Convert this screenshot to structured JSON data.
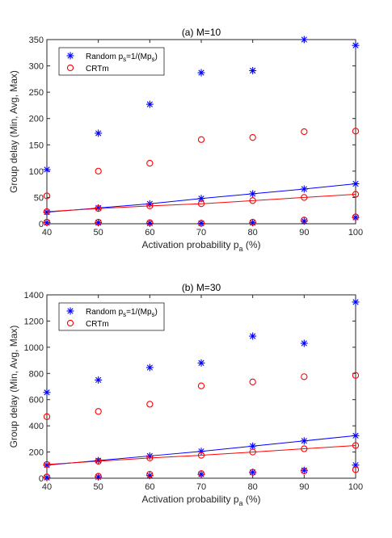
{
  "chart_data": [
    {
      "type": "scatter",
      "title": "(a) M=10",
      "xlabel": "Activation probability p_a (%)",
      "ylabel": "Group delay (Min, Avg, Max)",
      "x": [
        40,
        50,
        60,
        70,
        80,
        90,
        100
      ],
      "xlim": [
        40,
        100
      ],
      "ylim": [
        0,
        350
      ],
      "xticks": [
        "40",
        "50",
        "60",
        "70",
        "80",
        "90",
        "100"
      ],
      "yticks": [
        "0",
        "50",
        "100",
        "150",
        "200",
        "250",
        "300",
        "350"
      ],
      "grid": false,
      "legend_position": "top-left",
      "series": [
        {
          "name": "Random p_s=1/(Mp_s)",
          "color": "#0000ff",
          "marker": "asterisk",
          "min": [
            2,
            2,
            1,
            1,
            2,
            5,
            12
          ],
          "avg": [
            22,
            30,
            38,
            48,
            57,
            66,
            76
          ],
          "max": [
            103,
            172,
            227,
            287,
            291,
            350,
            339
          ]
        },
        {
          "name": "CRTm",
          "color": "#ff0000",
          "marker": "circle",
          "min": [
            3,
            3,
            2,
            1,
            3,
            7,
            13
          ],
          "avg": [
            23,
            29,
            34,
            38,
            44,
            50,
            56
          ],
          "max": [
            53,
            100,
            115,
            160,
            164,
            175,
            176
          ]
        }
      ]
    },
    {
      "type": "scatter",
      "title": "(b) M=30",
      "xlabel": "Activation probability p_a (%)",
      "ylabel": "Group delay (Min, Avg, Max)",
      "x": [
        40,
        50,
        60,
        70,
        80,
        90,
        100
      ],
      "xlim": [
        40,
        100
      ],
      "ylim": [
        0,
        1400
      ],
      "xticks": [
        "40",
        "50",
        "60",
        "70",
        "80",
        "90",
        "100"
      ],
      "yticks": [
        "0",
        "200",
        "400",
        "600",
        "800",
        "1000",
        "1200",
        "1400"
      ],
      "grid": false,
      "legend_position": "top-left",
      "series": [
        {
          "name": "Random p_s=1/(Mp_s)",
          "color": "#0000ff",
          "marker": "asterisk",
          "min": [
            5,
            10,
            20,
            30,
            45,
            60,
            100
          ],
          "avg": [
            100,
            135,
            170,
            205,
            245,
            285,
            325
          ],
          "max": [
            655,
            750,
            845,
            880,
            1085,
            1030,
            1345
          ]
        },
        {
          "name": "CRTm",
          "color": "#ff0000",
          "marker": "circle",
          "min": [
            10,
            15,
            30,
            35,
            45,
            55,
            65
          ],
          "avg": [
            105,
            130,
            155,
            175,
            200,
            225,
            250
          ],
          "max": [
            470,
            510,
            565,
            705,
            735,
            775,
            785
          ]
        }
      ]
    }
  ]
}
